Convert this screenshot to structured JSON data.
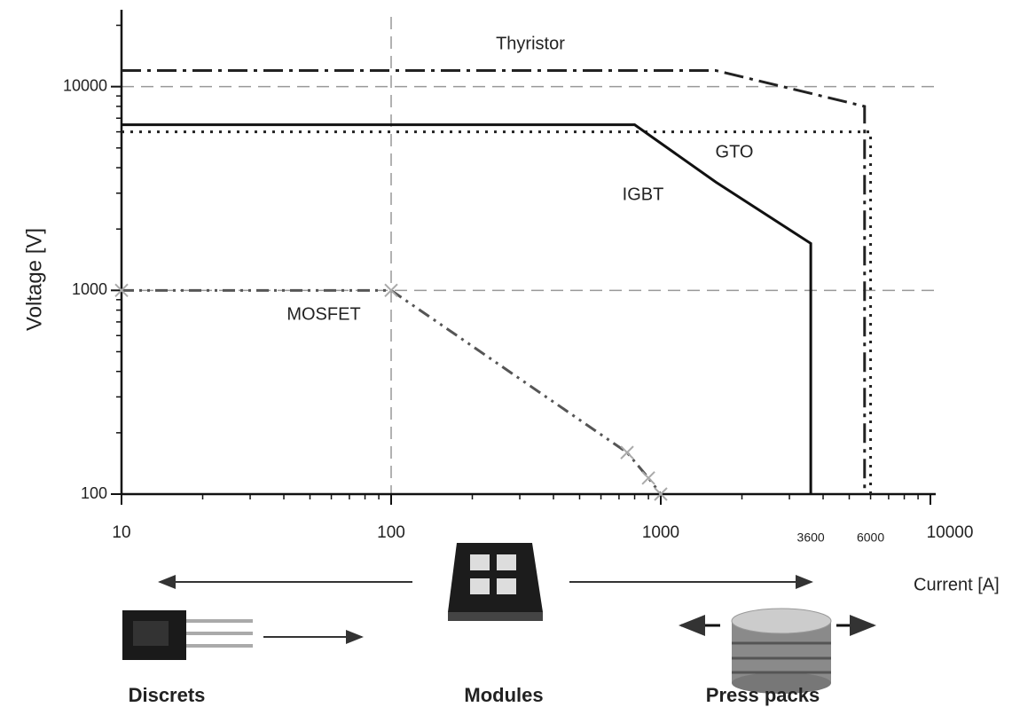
{
  "chart_data": {
    "type": "line",
    "x_label": "Current [A]",
    "y_label": "Voltage  [V]",
    "x_scale": "log",
    "y_scale": "log",
    "xlim": [
      10,
      10000
    ],
    "ylim": [
      100,
      22000
    ],
    "xticks": [
      10,
      100,
      1000,
      10000
    ],
    "yticks": [
      100,
      1000,
      10000
    ],
    "x_markers": [
      3600,
      6000
    ],
    "ref_lines": {
      "x": [
        100
      ],
      "y": [
        1000,
        10000
      ]
    },
    "series": [
      {
        "name": "Thyristor",
        "color": "#222222",
        "style": "dashdot",
        "x": [
          10,
          1600,
          5700,
          5700
        ],
        "y": [
          12000,
          12000,
          8000,
          100
        ]
      },
      {
        "name": "GTO",
        "color": "#222222",
        "style": "dotted",
        "x": [
          10,
          6000,
          6000
        ],
        "y": [
          6000,
          6000,
          100
        ]
      },
      {
        "name": "IGBT",
        "color": "#111111",
        "style": "solid",
        "x": [
          10,
          800,
          1600,
          3600,
          3600
        ],
        "y": [
          6500,
          6500,
          3400,
          1700,
          100
        ]
      },
      {
        "name": "MOSFET",
        "color": "#555555",
        "style": "dashdotdot",
        "marker": "x",
        "x": [
          10,
          100,
          750,
          900,
          1000
        ],
        "y": [
          1000,
          1000,
          160,
          120,
          100
        ]
      }
    ],
    "packages": [
      "Discrets",
      "Modules",
      "Press packs"
    ]
  }
}
